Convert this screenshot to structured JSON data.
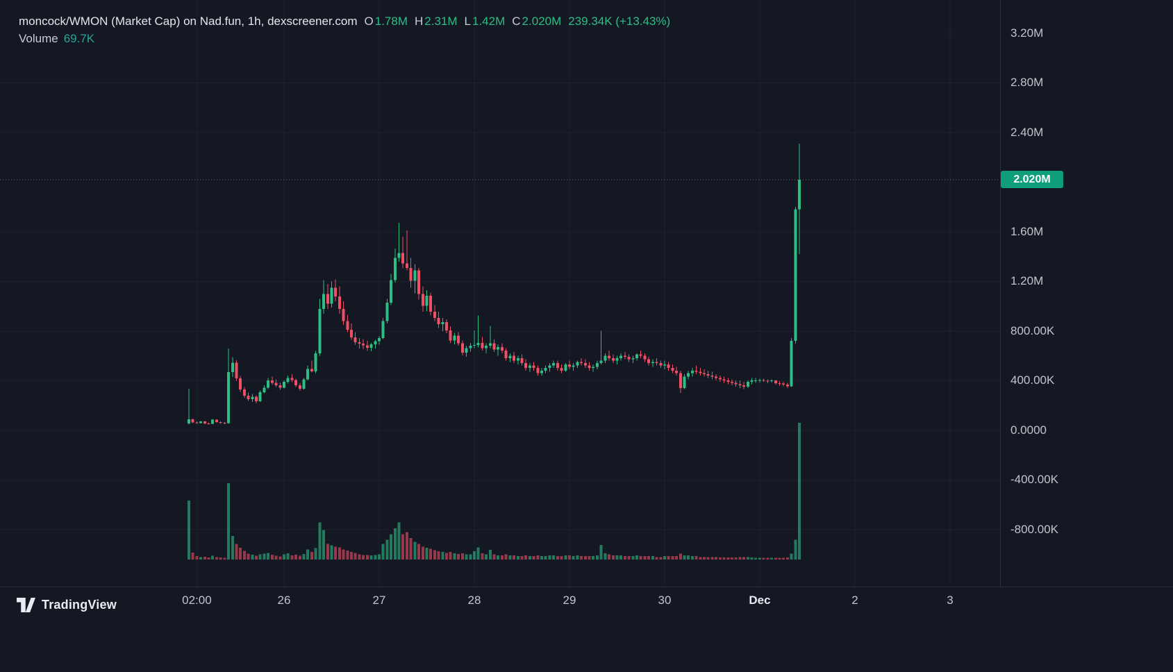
{
  "colors": {
    "background": "#141823",
    "up": "#2ebd85",
    "down": "#ef5066",
    "axis_text": "#c2c5cd",
    "separator": "#2a2e39",
    "grid": "rgba(255,255,255,0.04)",
    "price_line": "#9aa5b0",
    "price_tag_bg": "#0f9d7a",
    "price_tag_text": "#ffffff",
    "title_text": "#e3e6ec",
    "volume_value": "#26a69a",
    "month_label": "#e8ebf2",
    "watermark_text": "#e9ebf0"
  },
  "legend": {
    "title": "moncock/WMON (Market Cap) on Nad.fun, 1h, dexscreener.com",
    "ohlc": [
      {
        "label": "O",
        "value": "1.78M"
      },
      {
        "label": "H",
        "value": "2.31M"
      },
      {
        "label": "L",
        "value": "1.42M"
      },
      {
        "label": "C",
        "value": "2.020M"
      }
    ],
    "change": "239.34K (+13.43%)",
    "volume_label": "Volume",
    "volume_value": "69.7K"
  },
  "price_axis": {
    "current": {
      "label": "2.020M"
    }
  },
  "watermark": {
    "label": "TradingView"
  },
  "chart_data": {
    "type": "candlestick",
    "title": "moncock/WMON (Market Cap) on Nad.fun, 1h, dexscreener.com",
    "pair": "moncock/WMON",
    "metric": "Market Cap",
    "platform": "Nad.fun",
    "interval": "1h",
    "source": "dexscreener.com",
    "legend_position": "top-left",
    "grid": false,
    "value_unit": "K (thousands of market cap)",
    "last_candle": {
      "open_k": 1780,
      "high_k": 2310,
      "low_k": 1420,
      "close_k": 2020,
      "volume_k": 69.7,
      "change_abs": "239.34K",
      "change_pct": "+13.43%"
    },
    "current_price_k": 2020,
    "ylim_k": [
      -1259,
      3468
    ],
    "y_ticks": [
      {
        "label": "3.20M",
        "value": 3200
      },
      {
        "label": "2.80M",
        "value": 2800
      },
      {
        "label": "2.40M",
        "value": 2400
      },
      {
        "label": "1.60M",
        "value": 1600
      },
      {
        "label": "1.20M",
        "value": 1200
      },
      {
        "label": "800.00K",
        "value": 800
      },
      {
        "label": "400.00K",
        "value": 400
      },
      {
        "label": "0.0000",
        "value": 0
      },
      {
        "label": "-400.00K",
        "value": -400
      },
      {
        "label": "-800.00K",
        "value": -800
      }
    ],
    "x_ticks": [
      {
        "text": "02:00",
        "index": 2
      },
      {
        "text": "26",
        "index": 24
      },
      {
        "text": "27",
        "index": 48
      },
      {
        "text": "28",
        "index": 72
      },
      {
        "text": "29",
        "index": 96
      },
      {
        "text": "30",
        "index": 120
      },
      {
        "text": "Dec",
        "index": 144,
        "emphasis": true
      },
      {
        "text": "2",
        "index": 168
      },
      {
        "text": "3",
        "index": 192
      }
    ],
    "candles_ohlcv_k": [
      [
        55,
        336,
        48,
        88,
        30
      ],
      [
        88,
        96,
        58,
        64,
        3.5
      ],
      [
        64,
        72,
        52,
        58,
        1.8
      ],
      [
        58,
        76,
        55,
        72,
        1.2
      ],
      [
        72,
        75,
        50,
        55,
        1.5
      ],
      [
        55,
        62,
        46,
        52,
        1
      ],
      [
        52,
        92,
        50,
        86,
        2
      ],
      [
        86,
        90,
        60,
        66,
        1.3
      ],
      [
        66,
        72,
        54,
        60,
        1
      ],
      [
        60,
        66,
        50,
        58,
        0.8
      ],
      [
        58,
        660,
        52,
        470,
        39
      ],
      [
        470,
        590,
        430,
        545,
        12
      ],
      [
        545,
        565,
        400,
        420,
        8
      ],
      [
        420,
        440,
        310,
        330,
        6
      ],
      [
        330,
        350,
        262,
        280,
        4.5
      ],
      [
        280,
        305,
        238,
        252,
        3
      ],
      [
        252,
        292,
        230,
        272,
        2.5
      ],
      [
        272,
        282,
        218,
        234,
        2
      ],
      [
        234,
        322,
        228,
        308,
        2.6
      ],
      [
        308,
        362,
        298,
        344,
        3
      ],
      [
        344,
        422,
        332,
        402,
        3.4
      ],
      [
        402,
        432,
        368,
        384,
        2.4
      ],
      [
        384,
        412,
        348,
        362,
        2
      ],
      [
        362,
        382,
        328,
        344,
        1.6
      ],
      [
        344,
        402,
        338,
        390,
        2.6
      ],
      [
        390,
        442,
        378,
        422,
        3.1
      ],
      [
        422,
        452,
        388,
        404,
        2.1
      ],
      [
        404,
        416,
        348,
        364,
        2.4
      ],
      [
        364,
        382,
        318,
        334,
        2
      ],
      [
        334,
        422,
        328,
        410,
        2.9
      ],
      [
        410,
        524,
        402,
        496,
        5.2
      ],
      [
        496,
        562,
        468,
        476,
        3.9
      ],
      [
        476,
        640,
        460,
        620,
        5.9
      ],
      [
        620,
        1060,
        600,
        980,
        19
      ],
      [
        980,
        1210,
        940,
        1100,
        15
      ],
      [
        1100,
        1180,
        980,
        1020,
        8
      ],
      [
        1020,
        1200,
        990,
        1150,
        7.2
      ],
      [
        1150,
        1215,
        1040,
        1080,
        6.5
      ],
      [
        1080,
        1160,
        940,
        980,
        6.2
      ],
      [
        980,
        1040,
        850,
        880,
        5.2
      ],
      [
        880,
        930,
        790,
        810,
        4.6
      ],
      [
        810,
        860,
        730,
        750,
        3.9
      ],
      [
        750,
        790,
        690,
        710,
        3.3
      ],
      [
        710,
        745,
        660,
        700,
        2.6
      ],
      [
        700,
        735,
        655,
        685,
        2.3
      ],
      [
        685,
        720,
        640,
        665,
        2.3
      ],
      [
        665,
        705,
        638,
        692,
        2.1
      ],
      [
        692,
        730,
        660,
        718,
        2.3
      ],
      [
        718,
        760,
        690,
        745,
        2.6
      ],
      [
        745,
        905,
        735,
        880,
        8
      ],
      [
        880,
        1060,
        860,
        1030,
        10
      ],
      [
        1030,
        1260,
        1010,
        1210,
        13
      ],
      [
        1210,
        1465,
        1190,
        1390,
        16
      ],
      [
        1390,
        1672,
        1360,
        1430,
        19
      ],
      [
        1430,
        1560,
        1305,
        1345,
        13
      ],
      [
        1345,
        1610,
        1290,
        1310,
        14
      ],
      [
        1310,
        1390,
        1150,
        1205,
        11
      ],
      [
        1205,
        1340,
        1105,
        1290,
        9
      ],
      [
        1290,
        1310,
        1055,
        1100,
        8
      ],
      [
        1100,
        1160,
        955,
        1005,
        6.5
      ],
      [
        1005,
        1130,
        960,
        1085,
        6
      ],
      [
        1085,
        1110,
        925,
        955,
        5.5
      ],
      [
        955,
        1010,
        880,
        905,
        4.8
      ],
      [
        905,
        955,
        825,
        855,
        4.3
      ],
      [
        855,
        905,
        800,
        872,
        3.9
      ],
      [
        872,
        895,
        782,
        805,
        3.4
      ],
      [
        805,
        838,
        705,
        725,
        3.9
      ],
      [
        725,
        785,
        692,
        762,
        3.2
      ],
      [
        762,
        792,
        682,
        702,
        2.8
      ],
      [
        702,
        725,
        605,
        625,
        3.2
      ],
      [
        625,
        682,
        592,
        662,
        2.6
      ],
      [
        662,
        705,
        635,
        682,
        2.6
      ],
      [
        682,
        805,
        662,
        688,
        4.3
      ],
      [
        688,
        925,
        668,
        705,
        6.2
      ],
      [
        705,
        752,
        642,
        662,
        3.2
      ],
      [
        662,
        702,
        622,
        682,
        2.6
      ],
      [
        682,
        842,
        662,
        702,
        5
      ],
      [
        702,
        732,
        632,
        652,
        2.6
      ],
      [
        652,
        692,
        602,
        672,
        2.1
      ],
      [
        672,
        702,
        622,
        642,
        2.1
      ],
      [
        642,
        662,
        562,
        582,
        2.6
      ],
      [
        582,
        622,
        552,
        602,
        2.1
      ],
      [
        602,
        632,
        542,
        562,
        2.1
      ],
      [
        562,
        602,
        532,
        582,
        1.7
      ],
      [
        582,
        612,
        522,
        542,
        1.7
      ],
      [
        542,
        572,
        482,
        502,
        2.1
      ],
      [
        502,
        542,
        472,
        522,
        1.7
      ],
      [
        522,
        552,
        482,
        502,
        1.7
      ],
      [
        502,
        522,
        442,
        462,
        2.1
      ],
      [
        462,
        502,
        442,
        482,
        1.7
      ],
      [
        482,
        522,
        462,
        502,
        1.7
      ],
      [
        502,
        542,
        472,
        522,
        2.1
      ],
      [
        522,
        562,
        502,
        542,
        2.1
      ],
      [
        542,
        562,
        482,
        502,
        1.7
      ],
      [
        502,
        532,
        462,
        482,
        1.7
      ],
      [
        482,
        542,
        472,
        532,
        2.1
      ],
      [
        532,
        562,
        492,
        512,
        2.1
      ],
      [
        512,
        542,
        482,
        522,
        1.7
      ],
      [
        522,
        562,
        502,
        552,
        2.1
      ],
      [
        552,
        582,
        522,
        542,
        1.7
      ],
      [
        542,
        572,
        502,
        522,
        1.7
      ],
      [
        522,
        552,
        482,
        502,
        1.7
      ],
      [
        502,
        532,
        472,
        512,
        1.7
      ],
      [
        512,
        562,
        492,
        542,
        2.1
      ],
      [
        542,
        802,
        532,
        562,
        7.5
      ],
      [
        562,
        622,
        542,
        602,
        3.2
      ],
      [
        602,
        642,
        562,
        582,
        2.6
      ],
      [
        582,
        612,
        542,
        562,
        2.1
      ],
      [
        562,
        602,
        532,
        582,
        2.1
      ],
      [
        582,
        622,
        562,
        602,
        2.1
      ],
      [
        602,
        632,
        572,
        592,
        1.7
      ],
      [
        592,
        612,
        552,
        572,
        1.7
      ],
      [
        572,
        602,
        542,
        582,
        1.7
      ],
      [
        582,
        622,
        562,
        612,
        2.1
      ],
      [
        612,
        642,
        582,
        602,
        1.7
      ],
      [
        602,
        622,
        552,
        572,
        1.7
      ],
      [
        572,
        592,
        522,
        542,
        1.7
      ],
      [
        542,
        572,
        512,
        552,
        1.7
      ],
      [
        552,
        582,
        522,
        542,
        1.3
      ],
      [
        542,
        562,
        502,
        522,
        1.3
      ],
      [
        522,
        562,
        492,
        532,
        1.7
      ],
      [
        532,
        552,
        482,
        502,
        1.7
      ],
      [
        502,
        532,
        462,
        482,
        1.7
      ],
      [
        482,
        512,
        442,
        462,
        1.7
      ],
      [
        462,
        482,
        302,
        342,
        3
      ],
      [
        342,
        452,
        332,
        432,
        2.1
      ],
      [
        432,
        482,
        412,
        462,
        2.1
      ],
      [
        462,
        502,
        432,
        482,
        1.7
      ],
      [
        482,
        522,
        452,
        472,
        1.7
      ],
      [
        472,
        502,
        442,
        462,
        1.3
      ],
      [
        462,
        492,
        432,
        452,
        1.3
      ],
      [
        452,
        482,
        422,
        442,
        1.3
      ],
      [
        442,
        472,
        412,
        432,
        1.3
      ],
      [
        432,
        452,
        402,
        422,
        1.3
      ],
      [
        422,
        442,
        392,
        412,
        1.1
      ],
      [
        412,
        432,
        382,
        402,
        1.1
      ],
      [
        402,
        422,
        372,
        392,
        1.1
      ],
      [
        392,
        412,
        362,
        382,
        1.1
      ],
      [
        382,
        402,
        352,
        372,
        1.1
      ],
      [
        372,
        402,
        342,
        362,
        1.3
      ],
      [
        362,
        392,
        332,
        352,
        1.3
      ],
      [
        352,
        402,
        342,
        392,
        1.3
      ],
      [
        392,
        422,
        372,
        402,
        1.1
      ],
      [
        402,
        422,
        382,
        402,
        0.9
      ],
      [
        402,
        416,
        386,
        406,
        0.9
      ],
      [
        406,
        416,
        390,
        400,
        0.9
      ],
      [
        400,
        412,
        380,
        396,
        0.9
      ],
      [
        396,
        412,
        386,
        402,
        0.9
      ],
      [
        402,
        406,
        370,
        380,
        0.9
      ],
      [
        380,
        396,
        360,
        376,
        0.9
      ],
      [
        376,
        392,
        356,
        370,
        0.9
      ],
      [
        370,
        382,
        340,
        356,
        1.1
      ],
      [
        356,
        745,
        350,
        720,
        3
      ],
      [
        720,
        1800,
        700,
        1780,
        10
      ],
      [
        1780,
        2310,
        1420,
        2020,
        69.7
      ]
    ]
  }
}
